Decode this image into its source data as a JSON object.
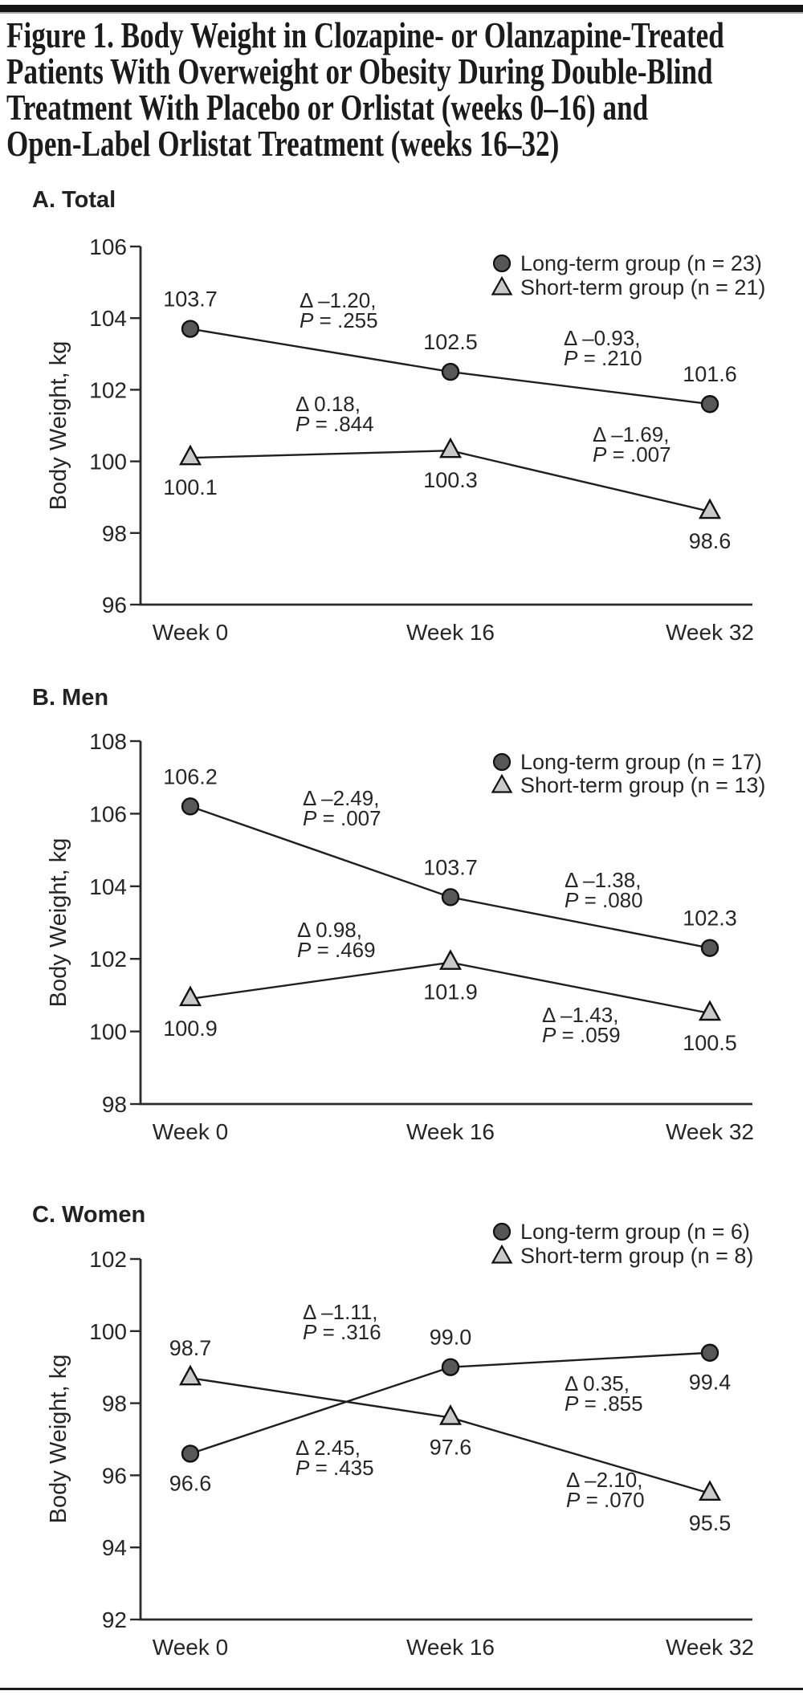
{
  "page": {
    "title_lines": [
      "Figure 1. Body Weight in Clozapine- or Olanzapine-Treated",
      "Patients With Overweight or Obesity During Double-Blind",
      "Treatment With Placebo or Orlistat (weeks 0–16) and",
      "Open-Label Orlistat Treatment (weeks 16–32)"
    ]
  },
  "colors": {
    "long_marker": "#575757",
    "short_marker": "#c9c9c9",
    "line": "#1f1f1f",
    "axis": "#2a2a2a",
    "text": "#262626",
    "rule": "#1a1a1a"
  },
  "chart_data": [
    {
      "id": "A",
      "type": "line",
      "panel_label": "A. Total",
      "ylabel": "Body Weight, kg",
      "categories": [
        "Week 0",
        "Week 16",
        "Week 32"
      ],
      "ylim": [
        96,
        106
      ],
      "yticks": [
        "106",
        "104",
        "102",
        "100",
        "98",
        "96"
      ],
      "legend_position": "top-right-inside",
      "grid": false,
      "series": [
        {
          "key": "long",
          "name": "Long-term group (n = 23)",
          "marker": "circle",
          "values": [
            103.7,
            102.5,
            101.6
          ],
          "value_labels": [
            "103.7",
            "102.5",
            "101.6"
          ]
        },
        {
          "key": "short",
          "name": "Short-term group (n = 21)",
          "marker": "triangle",
          "values": [
            100.1,
            100.3,
            98.6
          ],
          "value_labels": [
            "100.1",
            "100.3",
            "98.6"
          ]
        }
      ],
      "annotations": [
        {
          "series": "long",
          "segment": 0,
          "delta": "Δ –1.20,",
          "p": "P = .255"
        },
        {
          "series": "long",
          "segment": 1,
          "delta": "Δ –0.93,",
          "p": "P = .210"
        },
        {
          "series": "short",
          "segment": 0,
          "delta": "Δ 0.18,",
          "p": "P = .844"
        },
        {
          "series": "short",
          "segment": 1,
          "delta": "Δ –1.69,",
          "p": "P = .007"
        }
      ]
    },
    {
      "id": "B",
      "type": "line",
      "panel_label": "B. Men",
      "ylabel": "Body Weight, kg",
      "categories": [
        "Week 0",
        "Week 16",
        "Week 32"
      ],
      "ylim": [
        98,
        108
      ],
      "yticks": [
        "108",
        "106",
        "104",
        "102",
        "100",
        "98"
      ],
      "legend_position": "top-right-inside",
      "grid": false,
      "series": [
        {
          "key": "long",
          "name": "Long-term group (n = 17)",
          "marker": "circle",
          "values": [
            106.2,
            103.7,
            102.3
          ],
          "value_labels": [
            "106.2",
            "103.7",
            "102.3"
          ]
        },
        {
          "key": "short",
          "name": "Short-term group (n = 13)",
          "marker": "triangle",
          "values": [
            100.9,
            101.9,
            100.5
          ],
          "value_labels": [
            "100.9",
            "101.9",
            "100.5"
          ]
        }
      ],
      "annotations": [
        {
          "series": "long",
          "segment": 0,
          "delta": "Δ –2.49,",
          "p": "P = .007"
        },
        {
          "series": "long",
          "segment": 1,
          "delta": "Δ –1.38,",
          "p": "P = .080"
        },
        {
          "series": "short",
          "segment": 0,
          "delta": "Δ 0.98,",
          "p": "P = .469"
        },
        {
          "series": "short",
          "segment": 1,
          "delta": "Δ –1.43,",
          "p": "P = .059"
        }
      ]
    },
    {
      "id": "C",
      "type": "line",
      "panel_label": "C. Women",
      "ylabel": "Body Weight, kg",
      "categories": [
        "Week 0",
        "Week 16",
        "Week 32"
      ],
      "ylim": [
        92,
        102
      ],
      "yticks": [
        "102",
        "100",
        "98",
        "96",
        "94",
        "92"
      ],
      "legend_position": "top-right-above",
      "grid": false,
      "series": [
        {
          "key": "long",
          "name": "Long-term group (n = 6)",
          "marker": "circle",
          "values": [
            96.6,
            99.0,
            99.4
          ],
          "value_labels": [
            "96.6",
            "99.0",
            "99.4"
          ]
        },
        {
          "key": "short",
          "name": "Short-term group (n = 8)",
          "marker": "triangle",
          "values": [
            98.7,
            97.6,
            95.5
          ],
          "value_labels": [
            "98.7",
            "97.6",
            "95.5"
          ]
        }
      ],
      "annotations": [
        {
          "series": "short",
          "segment": 0,
          "delta": "Δ –1.11,",
          "p": "P = .316"
        },
        {
          "series": "long",
          "segment": 0,
          "delta": "Δ 2.45,",
          "p": "P = .435"
        },
        {
          "series": "long",
          "segment": 1,
          "delta": "Δ 0.35,",
          "p": "P = .855"
        },
        {
          "series": "short",
          "segment": 1,
          "delta": "Δ –2.10,",
          "p": "P = .070"
        }
      ]
    }
  ]
}
